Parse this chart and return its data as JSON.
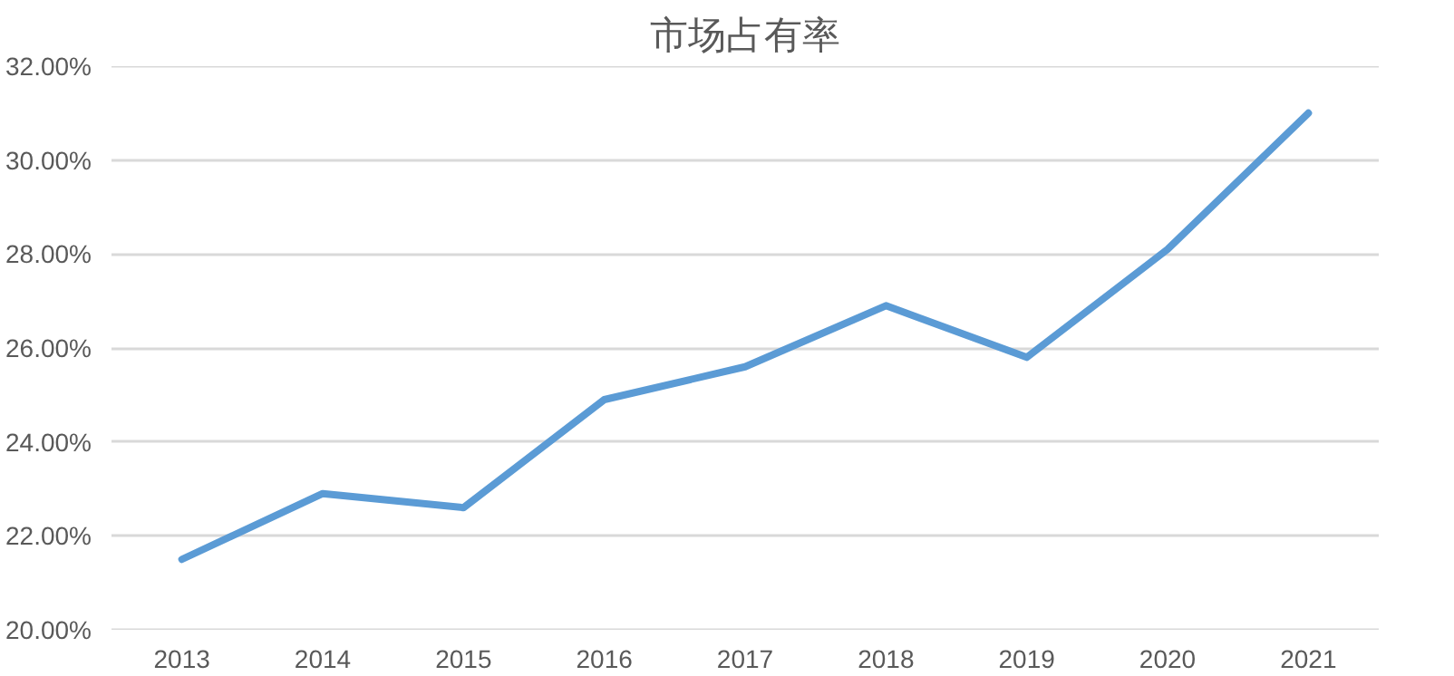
{
  "chart_data": {
    "type": "line",
    "title": "市场占有率",
    "categories": [
      "2013",
      "2014",
      "2015",
      "2016",
      "2017",
      "2018",
      "2019",
      "2020",
      "2021"
    ],
    "series": [
      {
        "color": "#5b9bd5",
        "values": [
          21.5,
          22.9,
          22.6,
          24.9,
          25.6,
          26.9,
          25.8,
          28.1,
          31.0
        ]
      }
    ],
    "ylim": [
      20,
      32
    ],
    "yticks": [
      {
        "value": 20,
        "label": "20.00%"
      },
      {
        "value": 22,
        "label": "22.00%"
      },
      {
        "value": 24,
        "label": "24.00%"
      },
      {
        "value": 26,
        "label": "26.00%"
      },
      {
        "value": 28,
        "label": "28.00%"
      },
      {
        "value": 30,
        "label": "30.00%"
      },
      {
        "value": 32,
        "label": "32.00%"
      }
    ],
    "grid": "y",
    "line_style": "solid"
  }
}
